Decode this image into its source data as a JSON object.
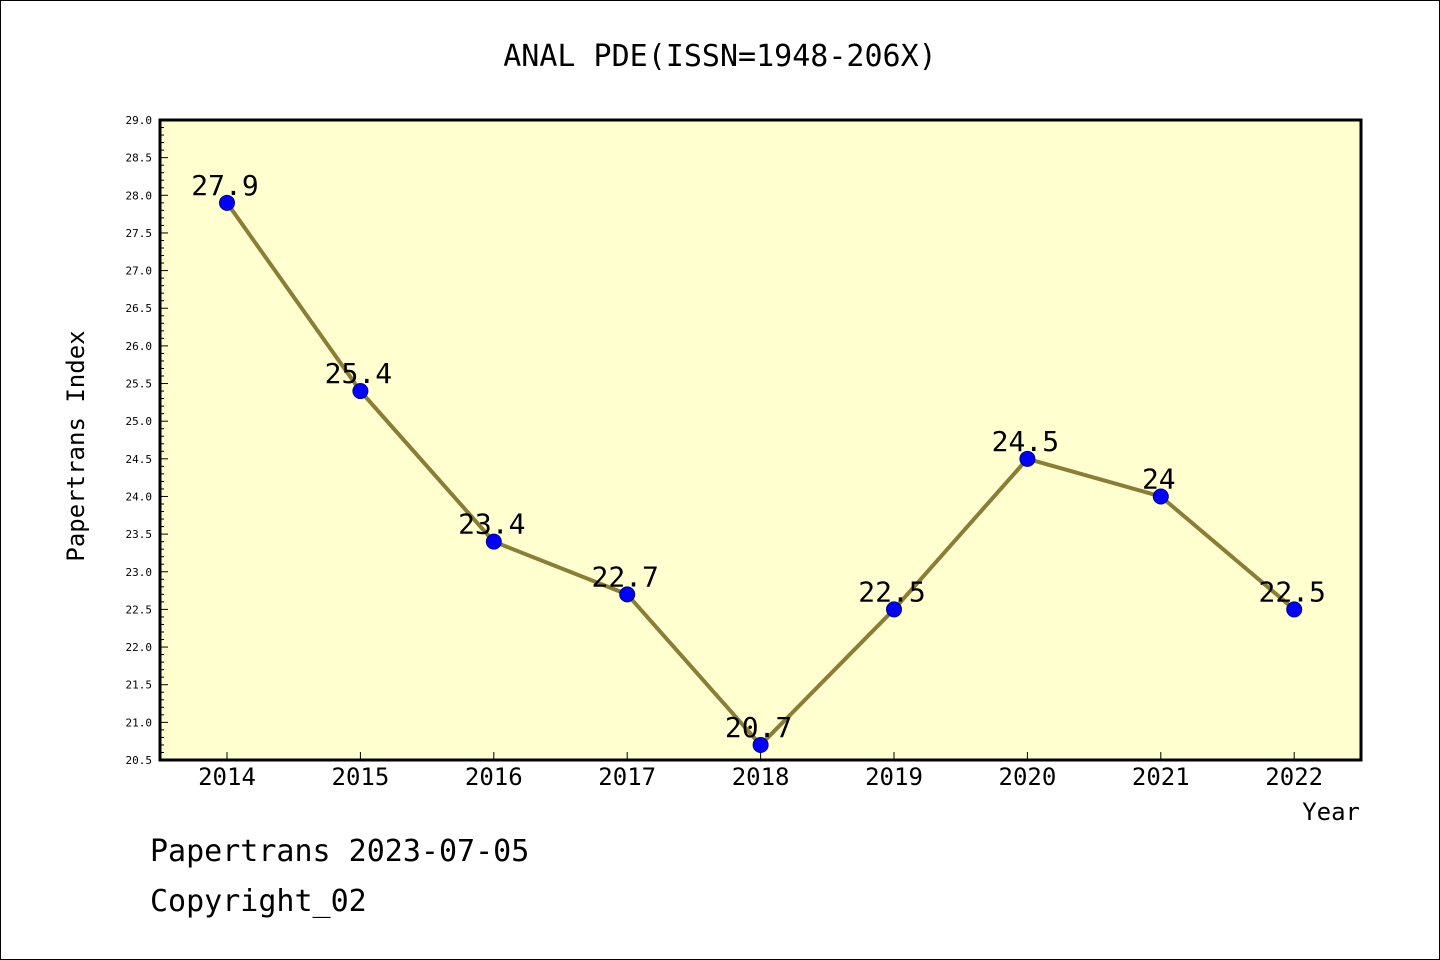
{
  "chart_data": {
    "type": "line",
    "title": "ANAL PDE(ISSN=1948-206X)",
    "xlabel": "Year",
    "ylabel": "Papertrans Index",
    "categories": [
      "2014",
      "2015",
      "2016",
      "2017",
      "2018",
      "2019",
      "2020",
      "2021",
      "2022"
    ],
    "series": [
      {
        "values": [
          27.9,
          25.4,
          23.4,
          22.7,
          20.7,
          22.5,
          24.5,
          24.0,
          22.5
        ],
        "data_labels": [
          "27.9",
          "25.4",
          "23.4",
          "22.7",
          "20.7",
          "22.5",
          "24.5",
          "24",
          "22.5"
        ]
      }
    ],
    "ylim": [
      20.5,
      29.0
    ],
    "yticks": [
      "20.5",
      "21.0",
      "21.5",
      "22.0",
      "22.5",
      "23.0",
      "23.5",
      "24.0",
      "24.5",
      "25.0",
      "25.5",
      "26.0",
      "26.5",
      "27.0",
      "27.5",
      "28.0",
      "28.5",
      "29.0"
    ],
    "grid": false,
    "colors": {
      "plot_background": "#ffffd0",
      "line": "#8b7d34",
      "marker": "#0000ff"
    }
  },
  "footer": {
    "date_text": "Papertrans 2023-07-05",
    "copyright_text": "Copyright_02"
  }
}
